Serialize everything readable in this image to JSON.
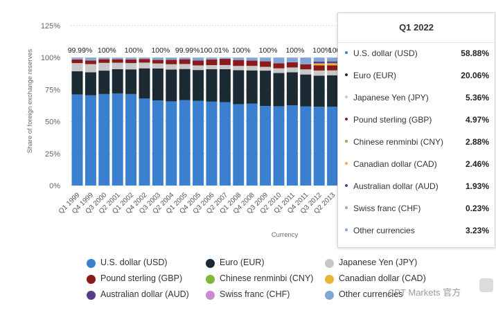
{
  "chart_data": {
    "type": "stacked-bar",
    "ylabel": "Share of foreign exchange reserves",
    "xlabel": "Currency",
    "ylim": [
      0,
      125
    ],
    "yticks": [
      "0%",
      "25%",
      "50%",
      "75%",
      "100%",
      "125%"
    ],
    "legend_position": "bottom",
    "grid": true,
    "categories": [
      "Q1 1999",
      "Q4 1999",
      "Q3 2000",
      "Q2 2001",
      "Q1 2002",
      "Q4 2002",
      "Q3 2003",
      "Q2 2004",
      "Q1 2005",
      "Q4 2005",
      "Q3 2006",
      "Q2 2007",
      "Q1 2008",
      "Q4 2008",
      "Q3 2009",
      "Q2 2010",
      "Q1 2011",
      "Q4 2011",
      "Q3 2012",
      "Q2 2013"
    ],
    "series": [
      {
        "name": "U.S. dollar (USD)",
        "color": "#3a7fd0",
        "values": [
          71.2,
          70.5,
          71.5,
          72.0,
          71.5,
          68.0,
          66.5,
          65.8,
          66.8,
          66.3,
          65.6,
          65.2,
          63.6,
          64.0,
          62.2,
          62.0,
          62.7,
          61.8,
          61.6,
          61.7
        ]
      },
      {
        "name": "Euro (EUR)",
        "color": "#1b2a33",
        "values": [
          18.1,
          18.0,
          18.3,
          19.0,
          19.3,
          23.6,
          25.0,
          24.9,
          24.3,
          24.0,
          25.3,
          25.8,
          26.5,
          26.0,
          27.6,
          26.0,
          25.8,
          25.0,
          24.3,
          24.5
        ]
      },
      {
        "name": "Japanese Yen (JPY)",
        "color": "#c8c8c8",
        "values": [
          6.4,
          6.4,
          6.1,
          5.0,
          4.9,
          4.5,
          3.9,
          4.1,
          3.9,
          3.6,
          3.2,
          3.2,
          3.4,
          3.5,
          3.0,
          3.6,
          3.8,
          4.0,
          4.0,
          3.8
        ]
      },
      {
        "name": "Pound sterling (GBP)",
        "color": "#8b1a1a",
        "values": [
          2.9,
          2.9,
          2.8,
          2.7,
          2.8,
          2.8,
          2.8,
          3.5,
          3.7,
          3.9,
          4.5,
          4.8,
          4.6,
          4.2,
          4.3,
          4.0,
          4.0,
          3.9,
          4.1,
          4.0
        ]
      },
      {
        "name": "Chinese renminbi (CNY)",
        "color": "#7fb83a",
        "values": [
          0,
          0,
          0,
          0,
          0,
          0,
          0,
          0,
          0,
          0,
          0,
          0,
          0,
          0,
          0,
          0,
          0,
          0,
          0,
          0
        ]
      },
      {
        "name": "Canadian dollar (CAD)",
        "color": "#e8b634",
        "values": [
          0,
          0,
          0,
          0,
          0,
          0,
          0,
          0,
          0,
          0,
          0,
          0,
          0,
          0,
          0,
          0,
          0,
          0,
          1.5,
          1.6
        ]
      },
      {
        "name": "Australian dollar (AUD)",
        "color": "#5a3d8a",
        "values": [
          0,
          0,
          0,
          0,
          0,
          0,
          0,
          0,
          0,
          0,
          0,
          0,
          0,
          0,
          0,
          0,
          0,
          0,
          1.4,
          1.5
        ]
      },
      {
        "name": "Swiss franc (CHF)",
        "color": "#c98ad0",
        "values": [
          0.3,
          0.3,
          0.3,
          0.3,
          0.4,
          0.4,
          0.2,
          0.2,
          0.1,
          0.1,
          0.2,
          0.2,
          0.1,
          0.1,
          0.1,
          0.1,
          0.1,
          0.1,
          0.2,
          0.2
        ]
      },
      {
        "name": "Other currencies",
        "color": "#7ea7d8",
        "values": [
          1.1,
          1.9,
          1.0,
          1.0,
          1.1,
          0.7,
          1.6,
          1.5,
          1.2,
          2.1,
          1.2,
          0.8,
          1.8,
          2.2,
          2.8,
          4.3,
          3.6,
          5.2,
          2.9,
          2.7
        ]
      }
    ],
    "total_labels": [
      {
        "text": "99.99%",
        "index": 0
      },
      {
        "text": "100%",
        "index": 2
      },
      {
        "text": "100%",
        "index": 4
      },
      {
        "text": "100%",
        "index": 6
      },
      {
        "text": "99.99%",
        "index": 8
      },
      {
        "text": "100.01%",
        "index": 10
      },
      {
        "text": "100%",
        "index": 12
      },
      {
        "text": "100%",
        "index": 14
      },
      {
        "text": "100%",
        "index": 16
      },
      {
        "text": "100%",
        "index": 18
      },
      {
        "text": "100.",
        "index": 19
      }
    ]
  },
  "tooltip": {
    "title": "Q1 2022",
    "rows": [
      {
        "label": "U.S. dollar (USD)",
        "value": "58.88%",
        "color": "#3a7fd0"
      },
      {
        "label": "Euro (EUR)",
        "value": "20.06%",
        "color": "#1b2a33"
      },
      {
        "label": "Japanese Yen (JPY)",
        "value": "5.36%",
        "color": "#c8c8c8"
      },
      {
        "label": "Pound sterling (GBP)",
        "value": "4.97%",
        "color": "#8b1a1a"
      },
      {
        "label": "Chinese renminbi (CNY)",
        "value": "2.88%",
        "color": "#7fb83a"
      },
      {
        "label": "Canadian dollar (CAD)",
        "value": "2.46%",
        "color": "#e8b634"
      },
      {
        "label": "Australian dollar (AUD)",
        "value": "1.93%",
        "color": "#5a3d8a"
      },
      {
        "label": "Swiss franc (CHF)",
        "value": "0.23%",
        "color": "#c98ad0"
      },
      {
        "label": "Other currencies",
        "value": "3.23%",
        "color": "#7ea7d8"
      }
    ]
  },
  "legend": [
    {
      "label": "U.S. dollar (USD)",
      "color": "#3a7fd0"
    },
    {
      "label": "Euro (EUR)",
      "color": "#1b2a33"
    },
    {
      "label": "Japanese Yen (JPY)",
      "color": "#c8c8c8"
    },
    {
      "label": "Pound sterling (GBP)",
      "color": "#8b1a1a"
    },
    {
      "label": "Chinese renminbi (CNY)",
      "color": "#7fb83a"
    },
    {
      "label": "Canadian dollar (CAD)",
      "color": "#e8b634"
    },
    {
      "label": "Australian dollar (AUD)",
      "color": "#5a3d8a"
    },
    {
      "label": "Swiss franc (CHF)",
      "color": "#c98ad0"
    },
    {
      "label": "Other currencies",
      "color": "#7ea7d8"
    }
  ],
  "watermark": "CPT Markets 官方"
}
